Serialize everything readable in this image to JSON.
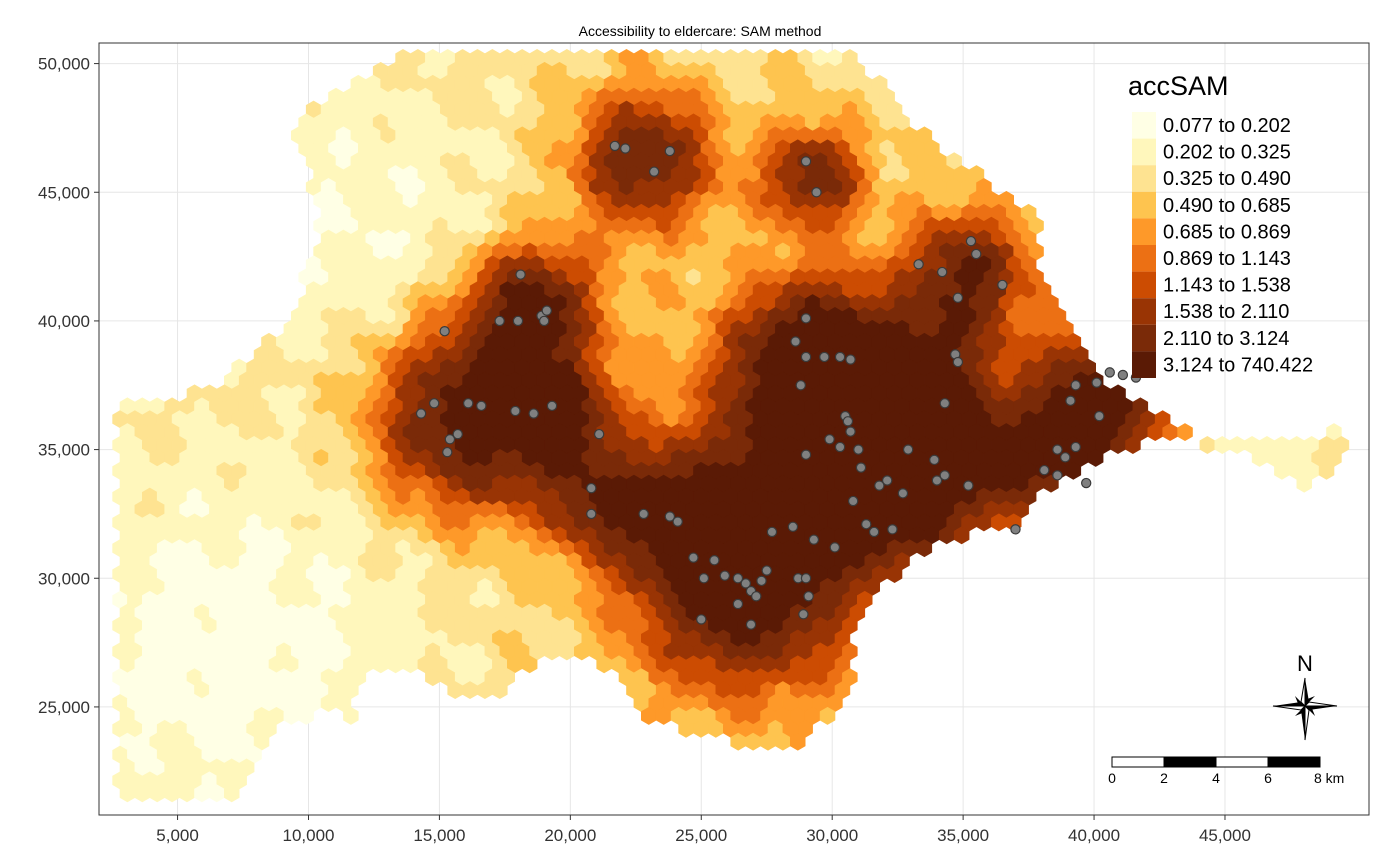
{
  "title": "Accessibility to eldercare: SAM method",
  "colors": {
    "classes": [
      "#ffffe5",
      "#fff7bc",
      "#fee391",
      "#fec44f",
      "#fe9929",
      "#ec7014",
      "#cc4c02",
      "#993404",
      "#7a2a08",
      "#5a1a05"
    ],
    "facility": "#808080",
    "grid": "#e6e6e6",
    "frame": "#333333"
  },
  "legend": {
    "title": "accSAM",
    "position": "top-right",
    "classes": [
      "0.077 to 0.202",
      "0.202 to 0.325",
      "0.325 to 0.490",
      "0.490 to 0.685",
      "0.685 to 0.869",
      "0.869 to 1.143",
      "1.143 to 1.538",
      "1.538 to 2.110",
      "2.110 to 3.124",
      "3.124 to 740.422"
    ]
  },
  "axes": {
    "x": {
      "range": [
        2000,
        50500
      ],
      "ticks": [
        "5,000",
        "10,000",
        "15,000",
        "20,000",
        "25,000",
        "30,000",
        "35,000",
        "40,000",
        "45,000"
      ],
      "tick_values": [
        5000,
        10000,
        15000,
        20000,
        25000,
        30000,
        35000,
        40000,
        45000
      ]
    },
    "y": {
      "range": [
        20800,
        50800
      ],
      "ticks": [
        "25,000",
        "30,000",
        "35,000",
        "40,000",
        "45,000",
        "50,000"
      ],
      "tick_values": [
        25000,
        30000,
        35000,
        40000,
        45000,
        50000
      ]
    },
    "grid": true
  },
  "scale_bar": {
    "labels": [
      "0",
      "2",
      "4",
      "6",
      "8 km"
    ]
  },
  "north_arrow": {
    "label": "N"
  },
  "facilities": [
    [
      21700,
      46800
    ],
    [
      22100,
      46700
    ],
    [
      23200,
      45800
    ],
    [
      23800,
      46600
    ],
    [
      29000,
      46200
    ],
    [
      29400,
      45000
    ],
    [
      18100,
      41800
    ],
    [
      18900,
      40200
    ],
    [
      19100,
      40400
    ],
    [
      17300,
      40000
    ],
    [
      18000,
      40000
    ],
    [
      19000,
      40000
    ],
    [
      15200,
      39600
    ],
    [
      14800,
      36800
    ],
    [
      14300,
      36400
    ],
    [
      15400,
      35400
    ],
    [
      15700,
      35600
    ],
    [
      15300,
      34900
    ],
    [
      16600,
      36700
    ],
    [
      17900,
      36500
    ],
    [
      18600,
      36400
    ],
    [
      19300,
      36700
    ],
    [
      16100,
      36800
    ],
    [
      21100,
      35600
    ],
    [
      20800,
      33500
    ],
    [
      20800,
      32500
    ],
    [
      22800,
      32500
    ],
    [
      23800,
      32400
    ],
    [
      24100,
      32200
    ],
    [
      24700,
      30800
    ],
    [
      25100,
      30000
    ],
    [
      25500,
      30700
    ],
    [
      25900,
      30100
    ],
    [
      26400,
      30000
    ],
    [
      26700,
      29800
    ],
    [
      26900,
      29500
    ],
    [
      27300,
      29900
    ],
    [
      27500,
      30300
    ],
    [
      27100,
      29300
    ],
    [
      26400,
      29000
    ],
    [
      28700,
      30000
    ],
    [
      29000,
      30000
    ],
    [
      29100,
      29300
    ],
    [
      28900,
      28600
    ],
    [
      28500,
      32000
    ],
    [
      26900,
      28200
    ],
    [
      25000,
      28400
    ],
    [
      27700,
      31800
    ],
    [
      28600,
      39200
    ],
    [
      29000,
      38600
    ],
    [
      29000,
      40100
    ],
    [
      29700,
      38600
    ],
    [
      30300,
      38600
    ],
    [
      30700,
      38500
    ],
    [
      28800,
      37500
    ],
    [
      29000,
      34800
    ],
    [
      29900,
      35400
    ],
    [
      30300,
      35100
    ],
    [
      30500,
      36300
    ],
    [
      30700,
      35700
    ],
    [
      31000,
      35000
    ],
    [
      31100,
      34300
    ],
    [
      30800,
      33000
    ],
    [
      30100,
      31200
    ],
    [
      31300,
      32100
    ],
    [
      31800,
      33600
    ],
    [
      32100,
      33800
    ],
    [
      32300,
      31900
    ],
    [
      32900,
      35000
    ],
    [
      31600,
      31800
    ],
    [
      33300,
      42200
    ],
    [
      34200,
      41900
    ],
    [
      34800,
      40900
    ],
    [
      35300,
      43100
    ],
    [
      35500,
      42600
    ],
    [
      36500,
      41400
    ],
    [
      34700,
      38700
    ],
    [
      34800,
      38400
    ],
    [
      34300,
      36800
    ],
    [
      33900,
      34600
    ],
    [
      34000,
      33800
    ],
    [
      34300,
      34000
    ],
    [
      35200,
      33600
    ],
    [
      37000,
      31900
    ],
    [
      38100,
      34200
    ],
    [
      38600,
      34000
    ],
    [
      38900,
      34700
    ],
    [
      39300,
      35100
    ],
    [
      39700,
      33700
    ],
    [
      38600,
      35000
    ],
    [
      39300,
      37500
    ],
    [
      39100,
      36900
    ],
    [
      40200,
      36300
    ],
    [
      40100,
      37600
    ],
    [
      40600,
      38000
    ],
    [
      41100,
      37900
    ],
    [
      41600,
      37800
    ],
    [
      32700,
      33300
    ],
    [
      30600,
      36100
    ],
    [
      29300,
      31500
    ]
  ]
}
